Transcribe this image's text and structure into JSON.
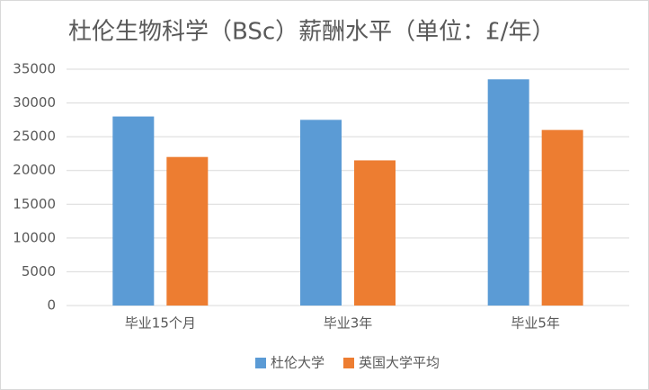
{
  "chart_data": {
    "type": "bar",
    "title": "杜伦生物科学（BSc）薪酬水平（单位：£/年）",
    "categories": [
      "毕业15个月",
      "毕业3年",
      "毕业5年"
    ],
    "series": [
      {
        "name": "杜伦大学",
        "color": "#5b9bd5",
        "values": [
          28000,
          27500,
          33500
        ]
      },
      {
        "name": "英国大学平均",
        "color": "#ed7d31",
        "values": [
          22000,
          21500,
          26000
        ]
      }
    ],
    "ylim": [
      0,
      35000
    ],
    "yticks": [
      0,
      5000,
      10000,
      15000,
      20000,
      25000,
      30000,
      35000
    ],
    "grid": true,
    "legend": "bottom"
  }
}
